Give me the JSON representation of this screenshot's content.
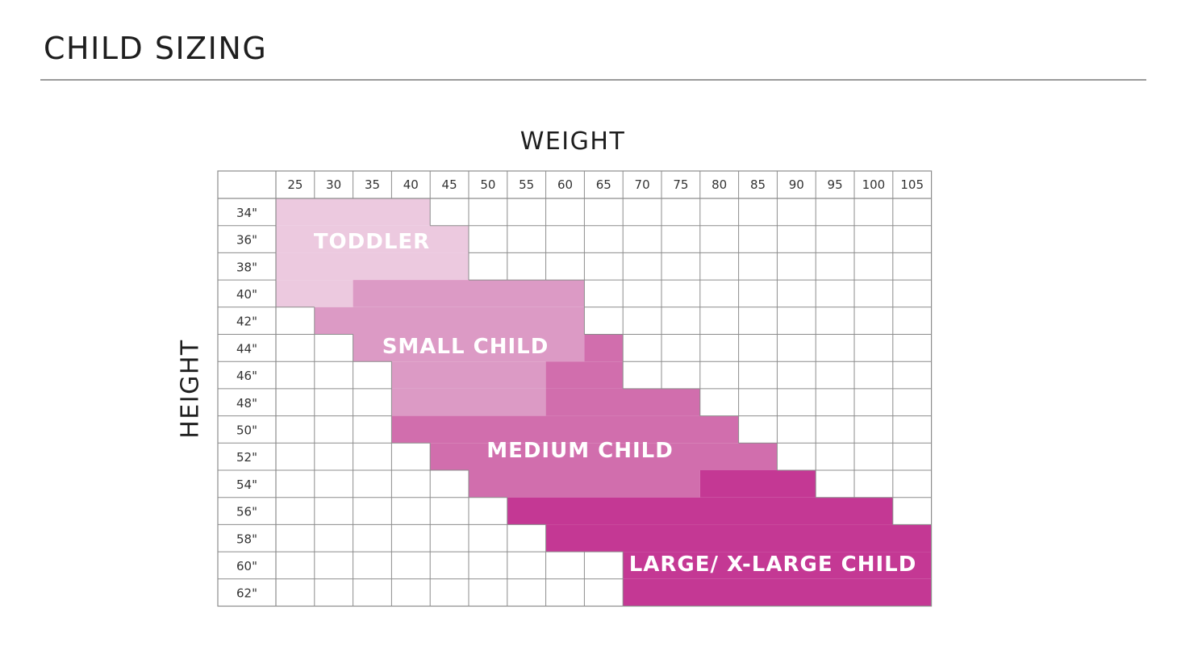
{
  "page": {
    "title": "CHILD SIZING"
  },
  "chart_data": {
    "type": "heatmap",
    "title": "",
    "xlabel": "WEIGHT",
    "ylabel": "HEIGHT",
    "x_ticks": [
      "25",
      "30",
      "35",
      "40",
      "45",
      "50",
      "55",
      "60",
      "65",
      "70",
      "75",
      "80",
      "85",
      "90",
      "95",
      "100",
      "105"
    ],
    "y_ticks": [
      "34\"",
      "36\"",
      "38\"",
      "40\"",
      "42\"",
      "44\"",
      "46\"",
      "48\"",
      "50\"",
      "52\"",
      "54\"",
      "56\"",
      "58\"",
      "60\"",
      "62\""
    ],
    "zones": [
      {
        "name": "TODDLER",
        "color": "#ecc9df",
        "rows": [
          {
            "height": "34\"",
            "weight_from": 25,
            "weight_to": 40
          },
          {
            "height": "36\"",
            "weight_from": 25,
            "weight_to": 45
          },
          {
            "height": "38\"",
            "weight_from": 25,
            "weight_to": 45
          },
          {
            "height": "40\"",
            "weight_from": 25,
            "weight_to": 30
          }
        ]
      },
      {
        "name": "SMALL CHILD",
        "color": "#dc9ac5",
        "rows": [
          {
            "height": "40\"",
            "weight_from": 35,
            "weight_to": 60
          },
          {
            "height": "42\"",
            "weight_from": 30,
            "weight_to": 60
          },
          {
            "height": "44\"",
            "weight_from": 35,
            "weight_to": 60
          },
          {
            "height": "46\"",
            "weight_from": 40,
            "weight_to": 55
          },
          {
            "height": "48\"",
            "weight_from": 40,
            "weight_to": 55
          }
        ]
      },
      {
        "name": "MEDIUM CHILD",
        "color": "#d16ead",
        "rows": [
          {
            "height": "44\"",
            "weight_from": 65,
            "weight_to": 65
          },
          {
            "height": "46\"",
            "weight_from": 60,
            "weight_to": 65
          },
          {
            "height": "48\"",
            "weight_from": 60,
            "weight_to": 75
          },
          {
            "height": "50\"",
            "weight_from": 40,
            "weight_to": 80
          },
          {
            "height": "52\"",
            "weight_from": 45,
            "weight_to": 85
          },
          {
            "height": "54\"",
            "weight_from": 50,
            "weight_to": 75
          }
        ]
      },
      {
        "name": "LARGE/ X-LARGE CHILD",
        "color": "#c43894",
        "rows": [
          {
            "height": "54\"",
            "weight_from": 80,
            "weight_to": 90
          },
          {
            "height": "56\"",
            "weight_from": 55,
            "weight_to": 100
          },
          {
            "height": "58\"",
            "weight_from": 60,
            "weight_to": 105
          },
          {
            "height": "60\"",
            "weight_from": 70,
            "weight_to": 105
          },
          {
            "height": "62\"",
            "weight_from": 70,
            "weight_to": 105
          }
        ]
      }
    ],
    "grid": true,
    "colors": {
      "grid": "#8c8c8c",
      "background": "#ffffff",
      "label_text": "#ffffff"
    }
  }
}
